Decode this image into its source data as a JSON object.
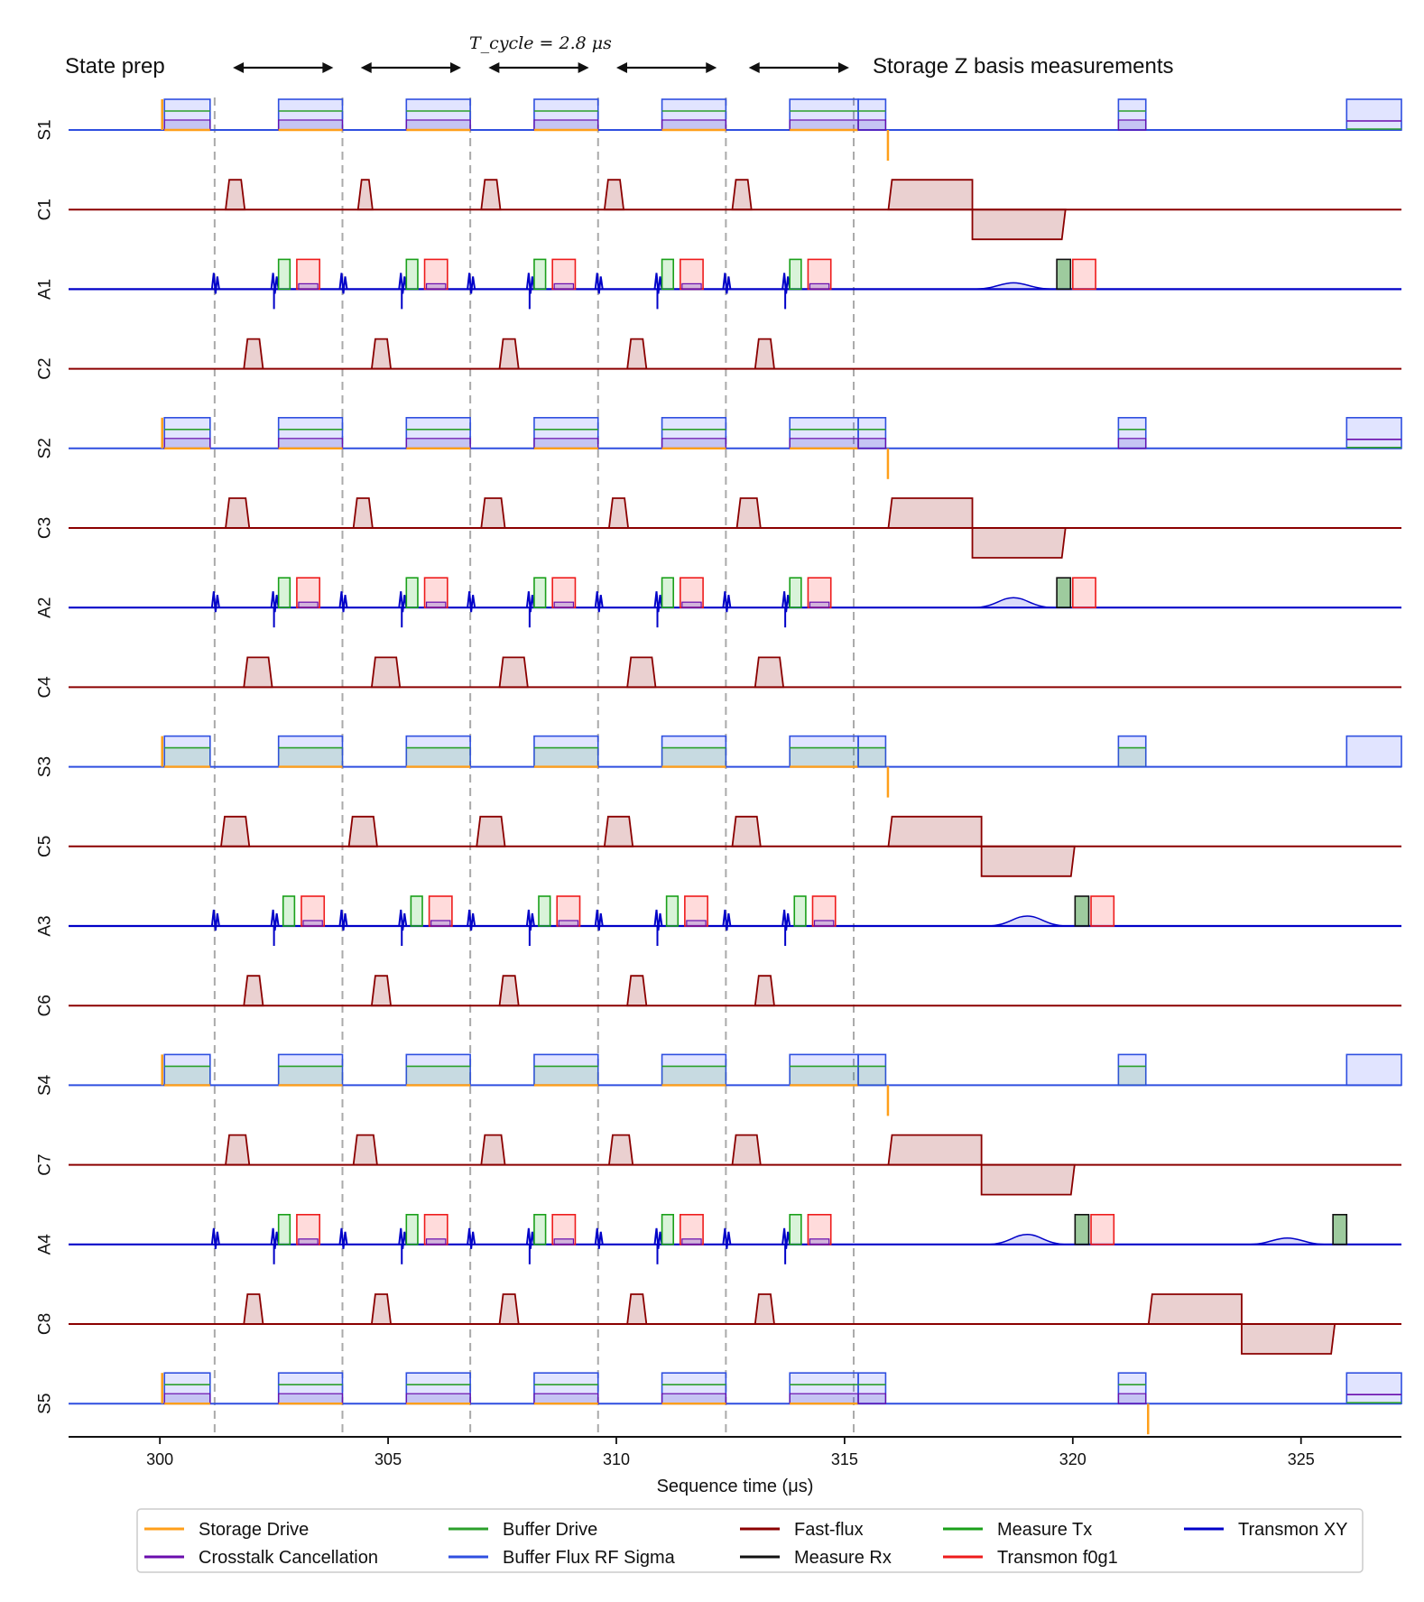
{
  "chart_data": {
    "type": "line",
    "title": "",
    "xlabel": "Sequence time (μs)",
    "xlim": [
      298,
      327.2
    ],
    "xticks": [
      300,
      305,
      310,
      315,
      320,
      325
    ],
    "cycle_boundaries": [
      301.2,
      304.0,
      306.8,
      309.6,
      312.4,
      315.2
    ],
    "annotations": {
      "state_prep": "State prep",
      "cycle_time": "T_cycle = 2.8 μs",
      "measurement": "Storage Z basis measurements",
      "arrow_spans": [
        [
          301.6,
          303.8
        ],
        [
          304.4,
          306.6
        ],
        [
          307.2,
          309.4
        ],
        [
          310.0,
          312.2
        ],
        [
          312.9,
          315.1
        ]
      ]
    },
    "channels": [
      "S1",
      "C1",
      "A1",
      "C2",
      "S2",
      "C3",
      "A2",
      "C4",
      "S3",
      "C5",
      "A3",
      "C6",
      "S4",
      "C7",
      "A4",
      "C8",
      "S5"
    ],
    "storage_pulse_windows": [
      [
        300.1,
        301.1
      ],
      [
        302.6,
        304.0
      ],
      [
        305.4,
        306.8
      ],
      [
        308.2,
        309.6
      ],
      [
        311.0,
        312.4
      ],
      [
        313.8,
        315.3
      ],
      [
        315.3,
        315.9
      ],
      [
        321.0,
        321.6
      ],
      [
        326.0,
        327.2
      ]
    ],
    "coupler_pulses": {
      "C1": [
        [
          301.5,
          301.8
        ],
        [
          304.4,
          304.6
        ],
        [
          307.1,
          307.4
        ],
        [
          309.8,
          310.1
        ],
        [
          312.6,
          312.9
        ]
      ],
      "C2": [
        [
          301.9,
          302.2
        ],
        [
          304.7,
          305.0
        ],
        [
          307.5,
          307.8
        ],
        [
          310.3,
          310.6
        ],
        [
          313.1,
          313.4
        ]
      ],
      "C3": [
        [
          301.5,
          301.9
        ],
        [
          304.3,
          304.6
        ],
        [
          307.1,
          307.5
        ],
        [
          309.9,
          310.2
        ],
        [
          312.7,
          313.1
        ]
      ],
      "C4": [
        [
          301.9,
          302.4
        ],
        [
          304.7,
          305.2
        ],
        [
          307.5,
          308.0
        ],
        [
          310.3,
          310.8
        ],
        [
          313.1,
          313.6
        ]
      ],
      "C5": [
        [
          301.4,
          301.9
        ],
        [
          304.2,
          304.7
        ],
        [
          307.0,
          307.5
        ],
        [
          309.8,
          310.3
        ],
        [
          312.6,
          313.1
        ]
      ],
      "C6": [
        [
          301.9,
          302.2
        ],
        [
          304.7,
          305.0
        ],
        [
          307.5,
          307.8
        ],
        [
          310.3,
          310.6
        ],
        [
          313.1,
          313.4
        ]
      ],
      "C7": [
        [
          301.5,
          301.9
        ],
        [
          304.3,
          304.7
        ],
        [
          307.1,
          307.5
        ],
        [
          309.9,
          310.3
        ],
        [
          312.6,
          313.1
        ]
      ],
      "C8": [
        [
          301.9,
          302.2
        ],
        [
          304.7,
          305.0
        ],
        [
          307.5,
          307.8
        ],
        [
          310.3,
          310.6
        ],
        [
          313.1,
          313.4
        ]
      ]
    },
    "measurement_flux": {
      "C1": [
        [
          316.0,
          317.8
        ],
        [
          317.8,
          319.8
        ]
      ],
      "C3": [
        [
          316.0,
          317.8
        ],
        [
          317.8,
          319.8
        ]
      ],
      "C5": [
        [
          316.0,
          318.0
        ],
        [
          318.0,
          320.0
        ]
      ],
      "C7": [
        [
          316.0,
          318.0
        ],
        [
          318.0,
          320.0
        ]
      ],
      "C8": [
        [
          321.7,
          323.7
        ],
        [
          323.7,
          325.7
        ]
      ]
    },
    "legend": [
      {
        "label": "Storage Drive",
        "color": "#ff9f1a"
      },
      {
        "label": "Buffer Drive",
        "color": "#2ca02c"
      },
      {
        "label": "Fast-flux",
        "color": "#8b0000"
      },
      {
        "label": "Measure Tx",
        "color": "#1aa01a"
      },
      {
        "label": "Transmon XY",
        "color": "#0000c8"
      },
      {
        "label": "Crosstalk Cancellation",
        "color": "#6a0dad"
      },
      {
        "label": "Buffer Flux RF Sigma",
        "color": "#2f4fe0"
      },
      {
        "label": "Measure Rx",
        "color": "#111111"
      },
      {
        "label": "Transmon f0g1",
        "color": "#ee1c1c"
      }
    ]
  }
}
